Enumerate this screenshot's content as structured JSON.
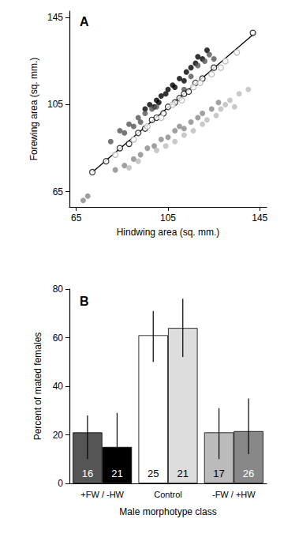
{
  "chart_data": [
    {
      "type": "scatter",
      "title": "A",
      "x_label": "Hindwing area (sq. mm.)",
      "y_label": "Forewing area (sq. mm.)",
      "xlim": [
        62,
        148
      ],
      "ylim": [
        58,
        148
      ],
      "xticks": [
        65,
        105,
        145
      ],
      "yticks": [
        65,
        105,
        145
      ],
      "grid": false,
      "series": [
        {
          "color": "#000000",
          "marker": "circle",
          "x": [
            95,
            97,
            99,
            100,
            101,
            102,
            104,
            105,
            107,
            108,
            110,
            112,
            113,
            115,
            117,
            118,
            120,
            122
          ],
          "y": [
            103,
            105,
            104,
            107,
            106,
            109,
            110,
            112,
            114,
            113,
            117,
            116,
            120,
            122,
            124,
            127,
            126,
            130
          ]
        },
        {
          "color": "#555555",
          "marker": "circle",
          "x": [
            80,
            84,
            86,
            88,
            90,
            92,
            93,
            95,
            98,
            100,
            112,
            115,
            118,
            121,
            123,
            125
          ],
          "y": [
            88,
            93,
            92,
            96,
            95,
            99,
            97,
            101,
            103,
            104,
            112,
            118,
            123,
            125,
            128,
            126
          ]
        },
        {
          "color": "#000000",
          "marker": "open_circle",
          "x": [
            72,
            78,
            84,
            88,
            92,
            95,
            98,
            100,
            103,
            105,
            108,
            110,
            112,
            114,
            117,
            120,
            125,
            142
          ],
          "y": [
            74,
            79,
            85,
            87,
            92,
            94,
            98,
            99,
            101,
            104,
            106,
            108,
            110,
            111,
            115,
            117,
            122,
            138
          ]
        },
        {
          "color": "#aaaaaa",
          "marker": "open_circle",
          "x": [
            82,
            90,
            96,
            102,
            107,
            111,
            116,
            119,
            124,
            128,
            130,
            135
          ],
          "y": [
            82,
            89,
            95,
            99,
            105,
            107,
            113,
            115,
            119,
            122,
            125,
            129
          ]
        },
        {
          "color": "#888888",
          "marker": "circle",
          "x": [
            68,
            70,
            82,
            86,
            90,
            93,
            96,
            99,
            102,
            105,
            108,
            110,
            112,
            115,
            118,
            120,
            124,
            127
          ],
          "y": [
            61,
            63,
            75,
            77,
            80,
            82,
            85,
            86,
            89,
            90,
            93,
            95,
            94,
            97,
            99,
            101,
            103,
            106
          ]
        },
        {
          "color": "#bbbbbb",
          "marker": "circle",
          "x": [
            88,
            92,
            100,
            104,
            108,
            112,
            116,
            120,
            122,
            126,
            128,
            130,
            132,
            134,
            136,
            140
          ],
          "y": [
            76,
            79,
            84,
            86,
            88,
            91,
            93,
            96,
            98,
            100,
            103,
            105,
            107,
            104,
            110,
            112
          ]
        },
        {
          "type": "line",
          "color": "#000000",
          "marker": "none",
          "line_style": "solid",
          "x": [
            72,
            143
          ],
          "y": [
            74,
            138
          ]
        }
      ]
    },
    {
      "type": "bar",
      "title": "B",
      "x_label": "Male morphotype class",
      "y_label": "Percent of mated females",
      "categories": [
        "+FW / -HW",
        "Control",
        "-FW / +HW"
      ],
      "ylim": [
        0,
        80
      ],
      "yticks": [
        0,
        20,
        40,
        60,
        80
      ],
      "grid": false,
      "series": [
        {
          "colors": [
            "#555555",
            "#ffffff",
            "#bbbbbb"
          ],
          "values": [
            21,
            61,
            21
          ],
          "error_low": [
            10,
            50,
            10
          ],
          "error_high": [
            28,
            71,
            31
          ],
          "n": [
            16,
            25,
            17
          ]
        },
        {
          "colors": [
            "#000000",
            "#dddddd",
            "#888888"
          ],
          "values": [
            15,
            64,
            21.5
          ],
          "error_low": [
            6,
            52,
            12
          ],
          "error_high": [
            29,
            76,
            35
          ],
          "n": [
            21,
            21,
            26
          ]
        }
      ]
    }
  ]
}
